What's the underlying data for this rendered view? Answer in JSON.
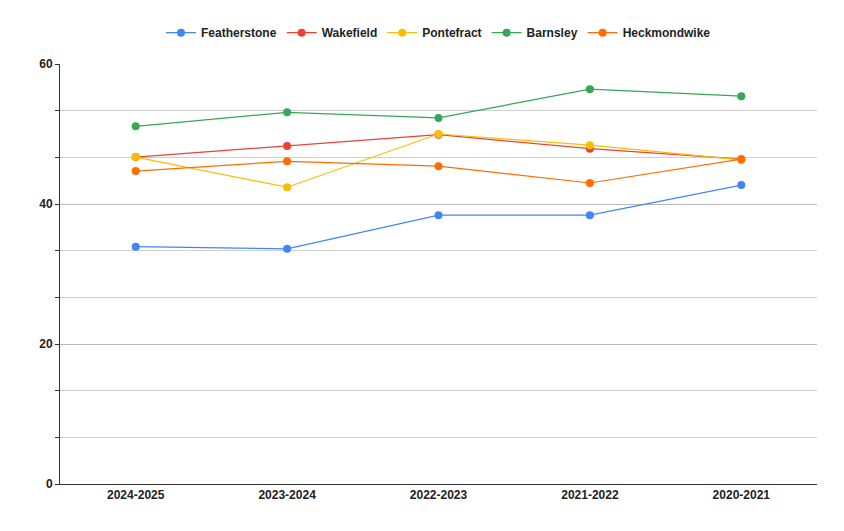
{
  "chart_data": {
    "type": "line",
    "categories": [
      "2024-2025",
      "2023-2024",
      "2022-2023",
      "2021-2022",
      "2020-2021"
    ],
    "series": [
      {
        "name": "Featherstone",
        "color": "#4285f4",
        "values": [
          33.9,
          33.6,
          38.4,
          38.4,
          42.7
        ]
      },
      {
        "name": "Wakefield",
        "color": "#ea4335",
        "values": [
          46.7,
          48.3,
          49.9,
          47.9,
          46.4
        ]
      },
      {
        "name": "Pontefract",
        "color": "#fbbc04",
        "values": [
          46.7,
          42.4,
          50.0,
          48.4,
          46.3
        ]
      },
      {
        "name": "Barnsley",
        "color": "#34a853",
        "values": [
          51.1,
          53.1,
          52.3,
          56.4,
          55.4
        ]
      },
      {
        "name": "Heckmondwike",
        "color": "#ff6d01",
        "values": [
          44.7,
          46.1,
          45.4,
          43.0,
          46.4
        ]
      }
    ],
    "ylim": [
      0,
      60
    ],
    "yticks": [
      0,
      20,
      40,
      60
    ],
    "grid": true,
    "legend": "top",
    "marker": "circle"
  }
}
